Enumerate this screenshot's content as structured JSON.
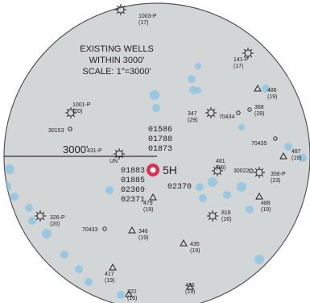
{
  "map": {
    "title_lines": [
      "EXISTING WELLS",
      "WITHIN 3000'",
      "SCALE: 1\"=3000'"
    ],
    "radius_label": "3000'",
    "center_label": "5H",
    "center_well_ids_top": [
      "01586",
      "01788",
      "01873"
    ],
    "center_well_ids_left": [
      "01883",
      "01885",
      "02369",
      "02371"
    ],
    "center_well_id_right": "02370",
    "small_label_un": "UN",
    "colors": {
      "map_fill": "#d3d6d7",
      "center_marker": "#d8324f",
      "water_dot": "#8fc4e4",
      "ink": "#222222"
    },
    "wells": [
      {
        "id": "1003-P",
        "count": "(17)",
        "symbol": "gas-well"
      },
      {
        "id": "141-P",
        "count": "(17)",
        "symbol": "gas-well"
      },
      {
        "id": "486",
        "count": "(19)",
        "symbol": "triangle"
      },
      {
        "id": "1001-P",
        "count": "(20)",
        "symbol": "gas-well"
      },
      {
        "id": "30153",
        "count": "",
        "symbol": "circle"
      },
      {
        "id": "347",
        "count": "(29)",
        "symbol": "gas-well"
      },
      {
        "id": "70434",
        "count": "",
        "symbol": "circle"
      },
      {
        "id": "368",
        "count": "(28)",
        "symbol": "circle"
      },
      {
        "id": "70435",
        "count": "",
        "symbol": "circle"
      },
      {
        "id": "487",
        "count": "(19)",
        "symbol": "triangle"
      },
      {
        "id": "431-P",
        "count": "",
        "symbol": "gas-well"
      },
      {
        "id": "481",
        "count": "(16)",
        "symbol": "gas-well"
      },
      {
        "id": "30022",
        "count": "",
        "symbol": "circle"
      },
      {
        "id": "358-P",
        "count": "(23)",
        "symbol": "gas-well"
      },
      {
        "id": "479",
        "count": "(19)",
        "symbol": "triangle"
      },
      {
        "id": "488",
        "count": "(19)",
        "symbol": "triangle"
      },
      {
        "id": "818",
        "count": "(16)",
        "symbol": "gas-well"
      },
      {
        "id": "326-P",
        "count": "(20)",
        "symbol": "gas-well"
      },
      {
        "id": "70433",
        "count": "",
        "symbol": "circle"
      },
      {
        "id": "346",
        "count": "(19)",
        "symbol": "triangle"
      },
      {
        "id": "435",
        "count": "(19)",
        "symbol": "triangle"
      },
      {
        "id": "417",
        "count": "(19)",
        "symbol": "triangle"
      },
      {
        "id": "322",
        "count": "(16)",
        "symbol": "triangle"
      },
      {
        "id": "436",
        "count": "(19)",
        "symbol": "triangle"
      }
    ]
  }
}
